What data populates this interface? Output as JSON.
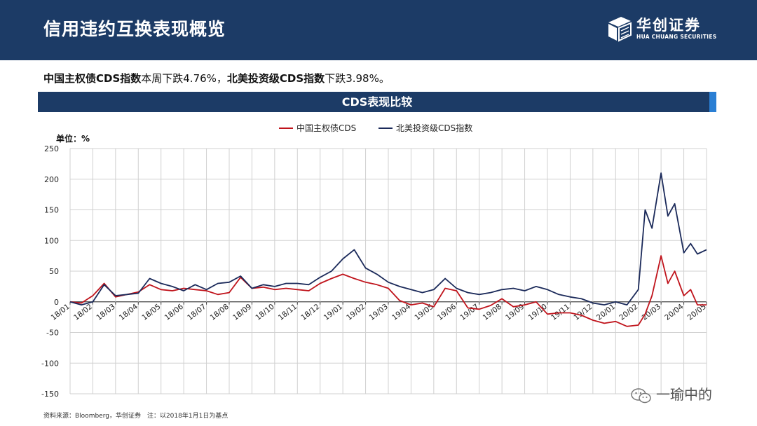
{
  "header": {
    "title": "信用违约互换表现概览"
  },
  "logo": {
    "name_cn": "华创证券",
    "name_en": "HUA CHUANG SECURITIES",
    "icon": "cube-logo-icon"
  },
  "summary": {
    "part1_bold": "中国主权债CDS指数",
    "part1_rest": "本周下跌4.76%，",
    "part2_bold": "北美投资级CDS指数",
    "part2_rest": "下跌3.98%。"
  },
  "banner": {
    "title": "CDS表现比较"
  },
  "source_note": "资料来源：Bloomberg，华创证券　注：以2018年1月1日为基点",
  "watermark": {
    "text": "一瑜中的",
    "icon": "wechat-icon"
  },
  "colors": {
    "header_bg": "#1c3b66",
    "china_series": "#c0141c",
    "na_series": "#1b2a5a",
    "banner_accent": "#2a7fd4"
  },
  "chart_data": {
    "type": "line",
    "unit_label": "单位：%",
    "ylim": [
      -150,
      250
    ],
    "yticks": [
      -150,
      -100,
      -50,
      0,
      50,
      100,
      150,
      200,
      250
    ],
    "grid": true,
    "legend_position": "top-center",
    "x_tick_labels": [
      "18/01",
      "18/02",
      "18/03",
      "18/04",
      "18/05",
      "18/06",
      "18/07",
      "18/08",
      "18/09",
      "18/10",
      "18/11",
      "18/12",
      "19/01",
      "19/02",
      "19/03",
      "19/04",
      "19/05",
      "19/06",
      "19/07",
      "19/08",
      "19/09",
      "19/10",
      "19/11",
      "19/12",
      "20/01",
      "20/02",
      "20/03",
      "20/04",
      "20/05"
    ],
    "x": [
      0,
      0.5,
      1,
      1.5,
      2,
      2.5,
      3,
      3.5,
      4,
      4.5,
      5,
      5.5,
      6,
      6.5,
      7,
      7.5,
      8,
      8.5,
      9,
      9.5,
      10,
      10.5,
      11,
      11.5,
      12,
      12.5,
      13,
      13.5,
      14,
      14.5,
      15,
      15.5,
      16,
      16.5,
      17,
      17.5,
      18,
      18.5,
      19,
      19.5,
      20,
      20.5,
      21,
      21.5,
      22,
      22.5,
      23,
      23.5,
      24,
      24.5,
      25,
      25.3,
      25.6,
      26,
      26.3,
      26.6,
      27,
      27.3,
      27.6,
      28
    ],
    "series": [
      {
        "name": "中国主权债CDS",
        "color": "#c0141c",
        "values": [
          0,
          -2,
          10,
          30,
          8,
          12,
          16,
          28,
          20,
          18,
          22,
          20,
          18,
          12,
          15,
          40,
          22,
          24,
          20,
          22,
          20,
          18,
          30,
          38,
          45,
          38,
          32,
          28,
          22,
          2,
          -5,
          -2,
          -8,
          22,
          18,
          -10,
          -12,
          -6,
          5,
          -8,
          -5,
          0,
          -20,
          -18,
          -18,
          -22,
          -30,
          -35,
          -32,
          -40,
          -38,
          -20,
          10,
          75,
          30,
          50,
          10,
          20,
          -5,
          -5
        ]
      },
      {
        "name": "北美投资级CDS指数",
        "color": "#1b2a5a",
        "values": [
          0,
          -5,
          0,
          28,
          10,
          12,
          14,
          38,
          30,
          25,
          18,
          28,
          20,
          30,
          32,
          42,
          22,
          28,
          25,
          30,
          30,
          28,
          40,
          50,
          70,
          85,
          55,
          45,
          32,
          25,
          20,
          15,
          20,
          38,
          22,
          15,
          12,
          15,
          20,
          22,
          18,
          25,
          20,
          12,
          8,
          5,
          -2,
          -5,
          0,
          -5,
          20,
          150,
          120,
          210,
          140,
          160,
          80,
          95,
          78,
          85
        ]
      }
    ]
  }
}
